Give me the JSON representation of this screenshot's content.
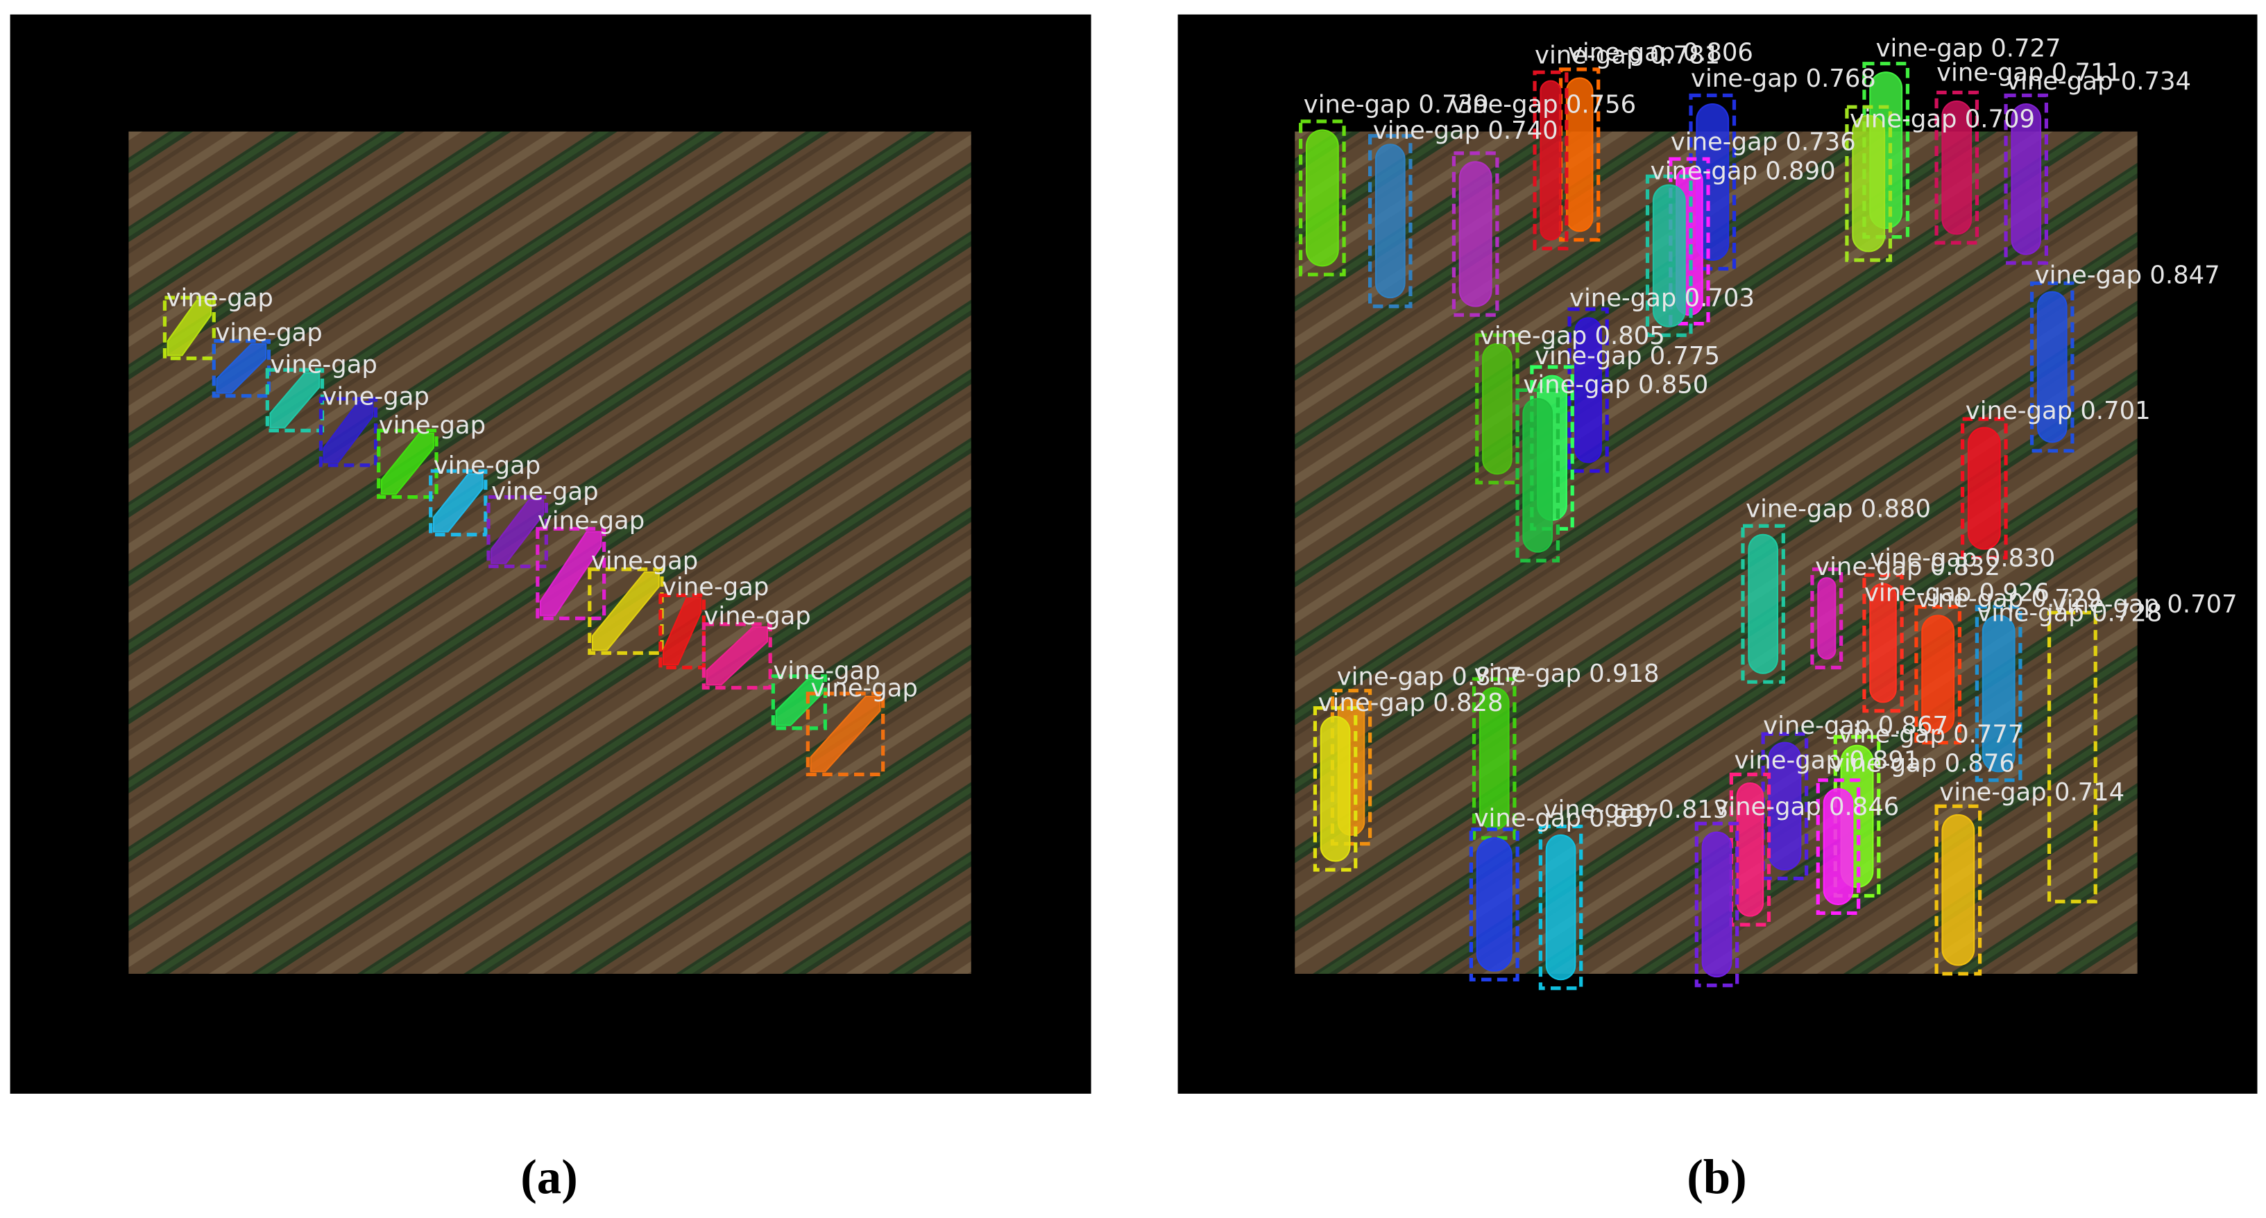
{
  "figure": {
    "panels": [
      {
        "label": "(a)",
        "detections": [
          "vine-gap",
          "vine-gap",
          "vine-gap",
          "vine-gap",
          "vine-gap",
          "vine-gap",
          "vine-gap",
          "vine-gap",
          "vine-gap",
          "vine-gap",
          "vine-gap",
          "vine-gap",
          "vine-gap"
        ]
      },
      {
        "label": "(b)",
        "detections": [
          "vine-gap 0.806",
          "vine-gap 0.781",
          "vine-gap 0.727",
          "vine-gap 0.711",
          "vine-gap 0.734",
          "vine-gap 0.768",
          "vine-gap 0.739",
          "vine-gap 0.756",
          "vine-gap 0.740",
          "vine-gap 0.709",
          "vine-gap 0.736",
          "vine-gap 0.890",
          "vine-gap 0.847",
          "vine-gap 0.703",
          "vine-gap 0.805",
          "vine-gap 0.775",
          "vine-gap 0.850",
          "vine-gap 0.701",
          "vine-gap 0.880",
          "vine-gap 0.830",
          "vine-gap 0.832",
          "vine-gap 0.926",
          "vine-gap 0.729",
          "vine-gap 0.707",
          "vine-gap 0.728",
          "vine-gap 0.817",
          "vine-gap 0.918",
          "vine-gap 0.828",
          "vine-gap 0.867",
          "vine-gap 0.777",
          "vine-gap 0.891",
          "vine-gap 0.876",
          "vine-gap 0.714",
          "vine-gap 0.813",
          "vine-gap 0.846",
          "vine-gap 0.837"
        ]
      }
    ]
  }
}
